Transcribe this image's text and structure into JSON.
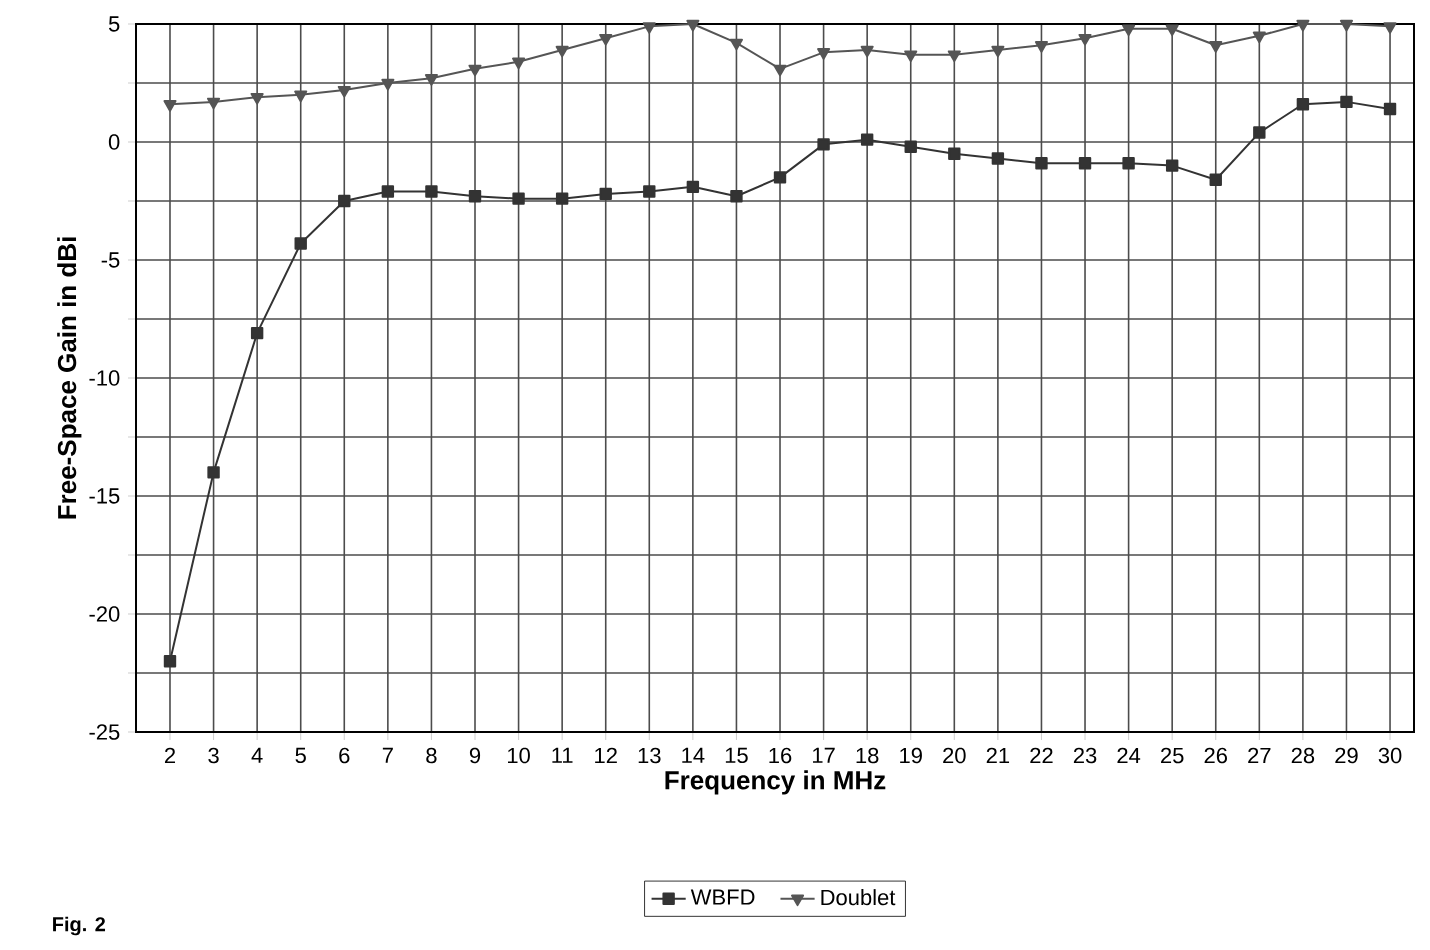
{
  "chart_data": {
    "type": "line",
    "xlabel": "Frequency in MHz",
    "ylabel": "Free-Space Gain in dBi",
    "categories": [
      "2",
      "3",
      "4",
      "5",
      "6",
      "7",
      "8",
      "9",
      "10",
      "11",
      "12",
      "13",
      "14",
      "15",
      "16",
      "17",
      "18",
      "19",
      "20",
      "21",
      "22",
      "23",
      "24",
      "25",
      "26",
      "27",
      "28",
      "29",
      "30"
    ],
    "series": [
      {
        "name": "WBFD",
        "color": "#333333",
        "marker": "square",
        "values": [
          -22,
          -14,
          -8.1,
          -4.3,
          -2.5,
          -2.1,
          -2.1,
          -2.3,
          -2.4,
          -2.4,
          -2.2,
          -2.1,
          -1.9,
          -2.3,
          -1.5,
          -0.1,
          0.1,
          -0.2,
          -0.5,
          -0.7,
          -0.9,
          -0.9,
          -0.9,
          -1.0,
          -1.6,
          0.4,
          1.6,
          1.7,
          1.4
        ]
      },
      {
        "name": "Doublet",
        "color": "#555555",
        "marker": "triangle",
        "values": [
          1.6,
          1.7,
          1.9,
          2.0,
          2.2,
          2.5,
          2.7,
          3.1,
          3.4,
          3.9,
          4.4,
          4.9,
          5.0,
          4.2,
          3.1,
          3.8,
          3.9,
          3.7,
          3.7,
          3.9,
          4.1,
          4.4,
          4.8,
          4.8,
          4.1,
          4.5,
          5.0,
          5.0,
          4.9
        ]
      }
    ],
    "ylim": [
      -25,
      5
    ],
    "yticks": [
      -25,
      {
        "value": -22.5,
        "label": null
      },
      -20,
      {
        "value": -17.5,
        "label": null
      },
      -15,
      {
        "value": -12.5,
        "label": null
      },
      -10,
      {
        "value": -7.5,
        "label": null
      },
      -5,
      {
        "value": -2.5,
        "label": null
      },
      0,
      {
        "value": 2.5,
        "label": null
      },
      5
    ],
    "grid": true,
    "legend": "bottom",
    "line_style": "solid",
    "annotations": [
      "Fig. 2"
    ]
  }
}
